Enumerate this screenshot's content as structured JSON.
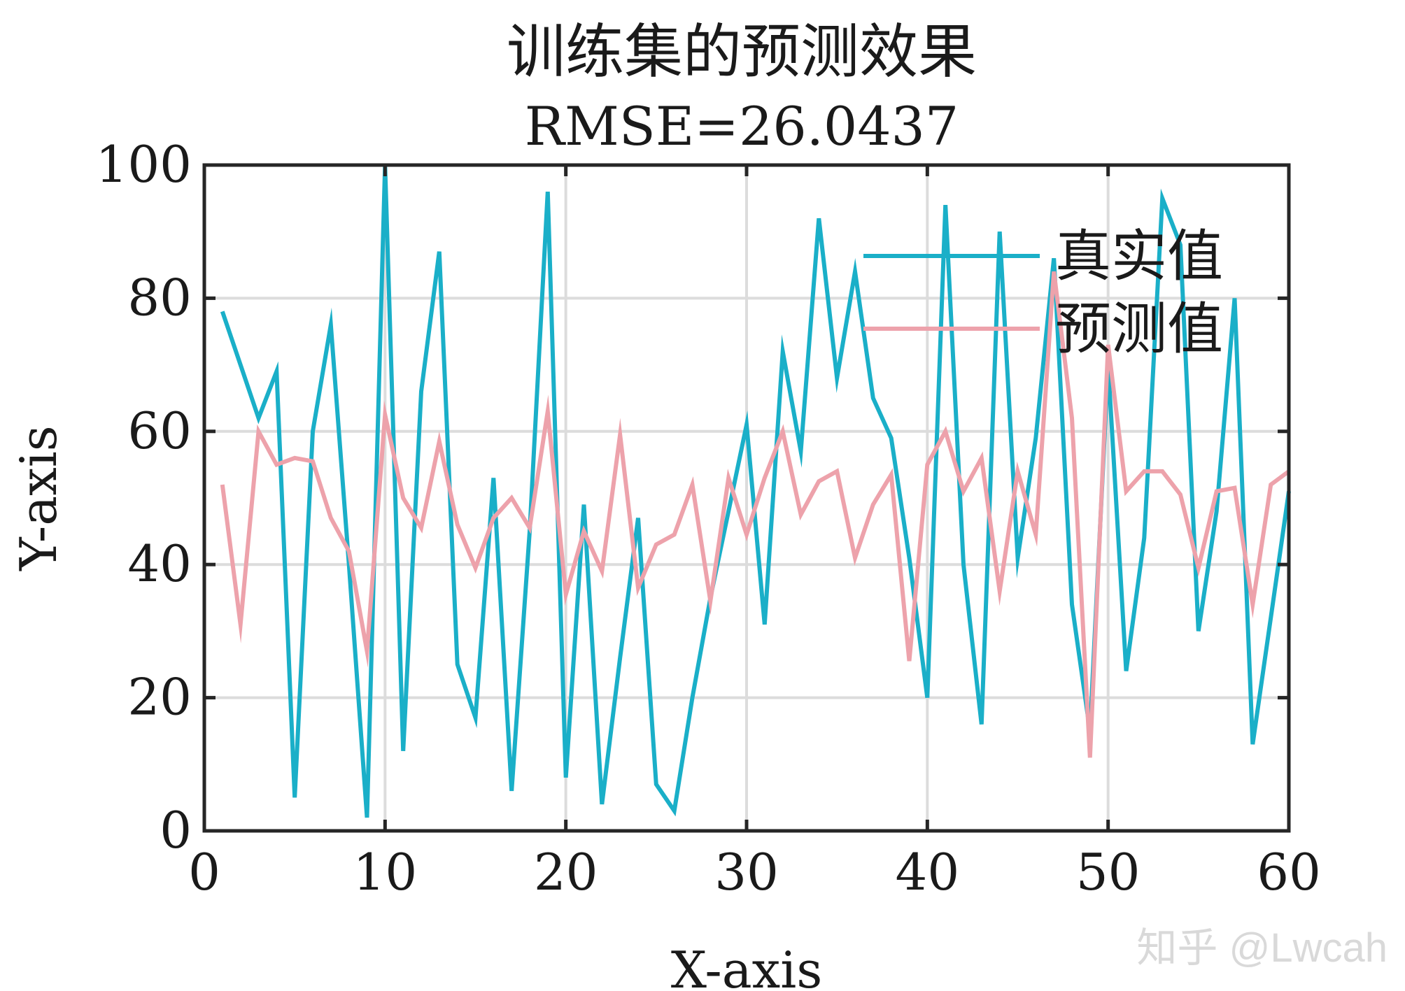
{
  "chart_data": {
    "type": "line",
    "title": "训练集的预测效果",
    "subtitle": "RMSE=26.0437",
    "xlabel": "X-axis",
    "ylabel": "Y-axis",
    "xlim": [
      0,
      60
    ],
    "ylim": [
      0,
      100
    ],
    "xticks": [
      "0",
      "10",
      "20",
      "30",
      "40",
      "50",
      "60"
    ],
    "yticks": [
      "0",
      "20",
      "40",
      "60",
      "80",
      "100"
    ],
    "grid": true,
    "legend_position": "top-right",
    "x": [
      1,
      2,
      3,
      4,
      5,
      6,
      7,
      8,
      9,
      10,
      11,
      12,
      13,
      14,
      15,
      16,
      17,
      18,
      19,
      20,
      21,
      22,
      23,
      24,
      25,
      26,
      27,
      28,
      29,
      30,
      31,
      32,
      33,
      34,
      35,
      36,
      37,
      38,
      39,
      40,
      41,
      42,
      43,
      44,
      45,
      46,
      47,
      48,
      49,
      50,
      51,
      52,
      53,
      54,
      55,
      56,
      57,
      58,
      59,
      60
    ],
    "series": [
      {
        "name": "真实值",
        "color": "#1aafc8",
        "values": [
          78,
          70,
          62,
          69,
          5,
          60,
          76,
          40,
          2,
          100,
          12,
          66,
          87,
          25,
          17,
          53,
          6,
          45,
          96,
          8,
          49,
          4,
          26,
          47,
          7,
          3,
          20,
          35,
          48,
          61,
          31,
          72,
          57,
          92,
          68,
          84,
          65,
          59,
          41,
          20,
          94,
          40,
          16,
          90,
          41,
          59,
          86,
          34,
          15,
          70,
          24,
          44,
          95,
          88,
          30,
          48,
          80,
          13,
          32,
          51
        ]
      },
      {
        "name": "预测值",
        "color": "#eda2ab",
        "values": [
          52,
          31,
          60,
          55,
          56,
          55.5,
          47,
          42,
          27,
          62.5,
          50,
          45.5,
          58.5,
          46,
          39.5,
          47,
          50,
          45.5,
          63,
          35.5,
          45,
          39,
          59.5,
          36.5,
          43,
          44.5,
          52,
          34.5,
          53,
          44.5,
          53,
          60,
          47.5,
          52.5,
          54,
          41,
          49,
          53.5,
          25.5,
          55,
          60,
          51,
          56,
          36,
          54,
          44.5,
          84,
          62,
          11,
          73,
          51,
          54,
          54,
          50.5,
          39.5,
          51,
          51.5,
          34,
          52,
          54
        ]
      }
    ]
  },
  "watermark": "知乎 @Lwcah"
}
